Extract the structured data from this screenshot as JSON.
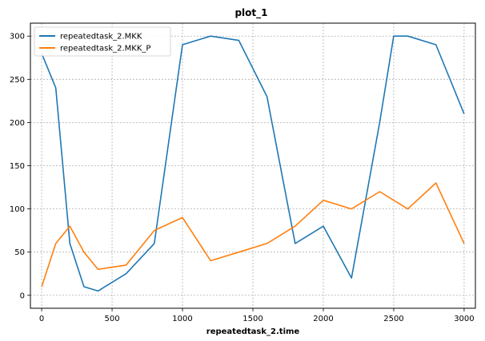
{
  "chart_data": {
    "type": "line",
    "title": "plot_1",
    "xlabel": "repeatedtask_2.time",
    "ylabel": "",
    "xlim": [
      -80,
      3080
    ],
    "ylim": [
      -15,
      315
    ],
    "xticks": [
      0,
      500,
      1000,
      1500,
      2000,
      2500,
      3000
    ],
    "yticks": [
      0,
      50,
      100,
      150,
      200,
      250,
      300
    ],
    "xtick_labels": [
      "0",
      "500",
      "1000",
      "1500",
      "2000",
      "2500",
      "3000"
    ],
    "ytick_labels": [
      "0",
      "50",
      "100",
      "150",
      "200",
      "250",
      "300"
    ],
    "grid": true,
    "legend_position": "top-left",
    "series": [
      {
        "name": "repeatedtask_2.MKK",
        "color": "#1f77b4",
        "x": [
          0,
          100,
          200,
          300,
          400,
          600,
          800,
          1000,
          1200,
          1400,
          1600,
          1800,
          2000,
          2200,
          2400,
          2500,
          2600,
          2800,
          3000
        ],
        "y": [
          280,
          240,
          60,
          10,
          5,
          25,
          60,
          290,
          300,
          295,
          230,
          60,
          80,
          20,
          200,
          300,
          300,
          290,
          210
        ]
      },
      {
        "name": "repeatedtask_2.MKK_P",
        "color": "#ff7f0e",
        "x": [
          0,
          100,
          200,
          300,
          400,
          600,
          800,
          1000,
          1200,
          1400,
          1600,
          1800,
          2000,
          2200,
          2400,
          2600,
          2800,
          3000
        ],
        "y": [
          10,
          60,
          80,
          50,
          30,
          35,
          75,
          90,
          40,
          50,
          60,
          80,
          110,
          100,
          120,
          100,
          130,
          60
        ]
      }
    ]
  }
}
